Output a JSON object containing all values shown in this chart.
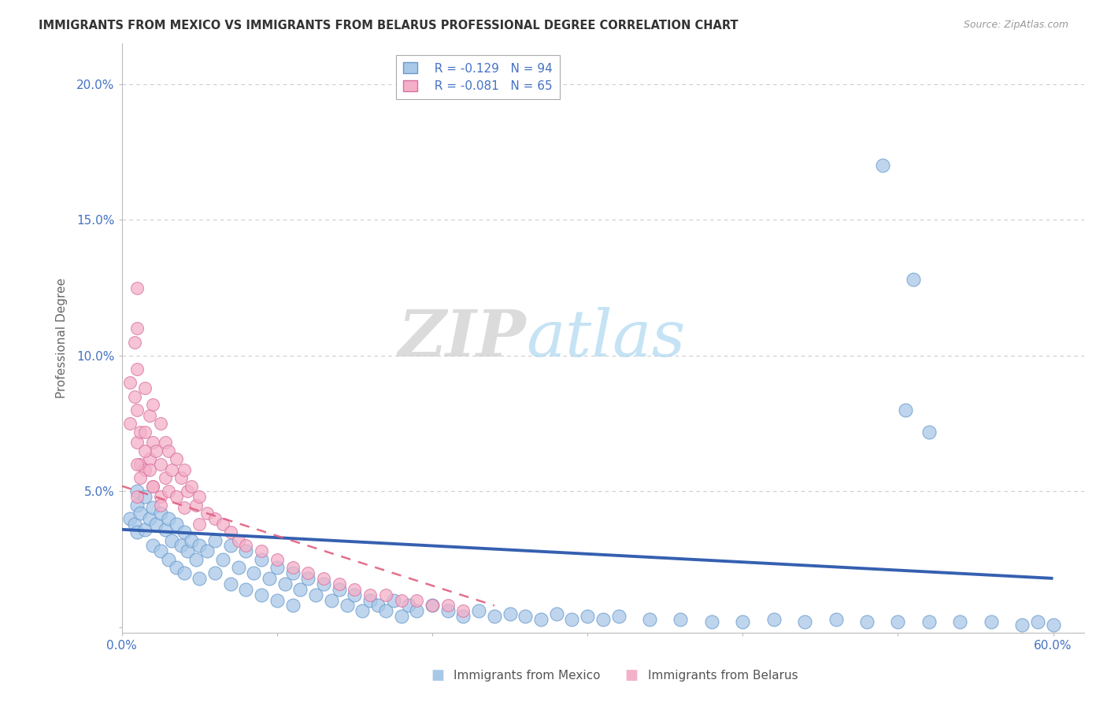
{
  "title": "IMMIGRANTS FROM MEXICO VS IMMIGRANTS FROM BELARUS PROFESSIONAL DEGREE CORRELATION CHART",
  "source": "Source: ZipAtlas.com",
  "xlabel_mexico": "Immigrants from Mexico",
  "xlabel_belarus": "Immigrants from Belarus",
  "ylabel": "Professional Degree",
  "xlim": [
    0.0,
    0.62
  ],
  "ylim": [
    -0.002,
    0.215
  ],
  "ytick_labels": [
    "",
    "5.0%",
    "10.0%",
    "15.0%",
    "20.0%"
  ],
  "xtick_labels": [
    "0.0%",
    "",
    "",
    "",
    "",
    "",
    "60.0%"
  ],
  "legend_r_mexico": "R = -0.129",
  "legend_n_mexico": "N = 94",
  "legend_r_belarus": "R = -0.081",
  "legend_n_belarus": "N = 65",
  "color_mexico": "#a8c8e8",
  "color_belarus": "#f4b0c8",
  "edge_mexico": "#6899cc",
  "edge_belarus": "#d870a0",
  "trendline_mexico": "#3560b0",
  "trendline_belarus": "#e06080",
  "mexico_x": [
    0.005,
    0.008,
    0.01,
    0.01,
    0.01,
    0.012,
    0.015,
    0.015,
    0.018,
    0.02,
    0.02,
    0.022,
    0.025,
    0.025,
    0.028,
    0.03,
    0.03,
    0.032,
    0.035,
    0.035,
    0.038,
    0.04,
    0.04,
    0.042,
    0.045,
    0.048,
    0.05,
    0.05,
    0.055,
    0.06,
    0.06,
    0.065,
    0.07,
    0.07,
    0.075,
    0.08,
    0.08,
    0.085,
    0.09,
    0.09,
    0.095,
    0.1,
    0.1,
    0.105,
    0.11,
    0.11,
    0.115,
    0.12,
    0.125,
    0.13,
    0.135,
    0.14,
    0.145,
    0.15,
    0.155,
    0.16,
    0.165,
    0.17,
    0.175,
    0.18,
    0.185,
    0.19,
    0.2,
    0.21,
    0.22,
    0.23,
    0.24,
    0.25,
    0.26,
    0.27,
    0.28,
    0.29,
    0.3,
    0.31,
    0.32,
    0.34,
    0.36,
    0.38,
    0.4,
    0.42,
    0.44,
    0.46,
    0.48,
    0.5,
    0.52,
    0.54,
    0.56,
    0.58,
    0.59,
    0.6,
    0.505,
    0.52,
    0.49,
    0.51
  ],
  "mexico_y": [
    0.04,
    0.038,
    0.05,
    0.045,
    0.035,
    0.042,
    0.048,
    0.036,
    0.04,
    0.044,
    0.03,
    0.038,
    0.042,
    0.028,
    0.036,
    0.04,
    0.025,
    0.032,
    0.038,
    0.022,
    0.03,
    0.035,
    0.02,
    0.028,
    0.032,
    0.025,
    0.03,
    0.018,
    0.028,
    0.032,
    0.02,
    0.025,
    0.03,
    0.016,
    0.022,
    0.028,
    0.014,
    0.02,
    0.025,
    0.012,
    0.018,
    0.022,
    0.01,
    0.016,
    0.02,
    0.008,
    0.014,
    0.018,
    0.012,
    0.016,
    0.01,
    0.014,
    0.008,
    0.012,
    0.006,
    0.01,
    0.008,
    0.006,
    0.01,
    0.004,
    0.008,
    0.006,
    0.008,
    0.006,
    0.004,
    0.006,
    0.004,
    0.005,
    0.004,
    0.003,
    0.005,
    0.003,
    0.004,
    0.003,
    0.004,
    0.003,
    0.003,
    0.002,
    0.002,
    0.003,
    0.002,
    0.003,
    0.002,
    0.002,
    0.002,
    0.002,
    0.002,
    0.001,
    0.002,
    0.001,
    0.08,
    0.072,
    0.17,
    0.128
  ],
  "belarus_x": [
    0.005,
    0.005,
    0.008,
    0.008,
    0.01,
    0.01,
    0.01,
    0.01,
    0.01,
    0.012,
    0.012,
    0.015,
    0.015,
    0.015,
    0.018,
    0.018,
    0.02,
    0.02,
    0.02,
    0.022,
    0.025,
    0.025,
    0.025,
    0.028,
    0.028,
    0.03,
    0.03,
    0.032,
    0.035,
    0.035,
    0.038,
    0.04,
    0.04,
    0.042,
    0.045,
    0.048,
    0.05,
    0.05,
    0.055,
    0.06,
    0.065,
    0.07,
    0.075,
    0.08,
    0.09,
    0.1,
    0.11,
    0.12,
    0.13,
    0.14,
    0.15,
    0.16,
    0.17,
    0.18,
    0.19,
    0.2,
    0.21,
    0.22,
    0.01,
    0.01,
    0.012,
    0.015,
    0.018,
    0.02,
    0.025
  ],
  "belarus_y": [
    0.09,
    0.075,
    0.105,
    0.085,
    0.125,
    0.11,
    0.095,
    0.08,
    0.068,
    0.072,
    0.06,
    0.088,
    0.072,
    0.058,
    0.078,
    0.062,
    0.082,
    0.068,
    0.052,
    0.065,
    0.075,
    0.06,
    0.048,
    0.068,
    0.055,
    0.065,
    0.05,
    0.058,
    0.062,
    0.048,
    0.055,
    0.058,
    0.044,
    0.05,
    0.052,
    0.045,
    0.048,
    0.038,
    0.042,
    0.04,
    0.038,
    0.035,
    0.032,
    0.03,
    0.028,
    0.025,
    0.022,
    0.02,
    0.018,
    0.016,
    0.014,
    0.012,
    0.012,
    0.01,
    0.01,
    0.008,
    0.008,
    0.006,
    0.06,
    0.048,
    0.055,
    0.065,
    0.058,
    0.052,
    0.045
  ]
}
